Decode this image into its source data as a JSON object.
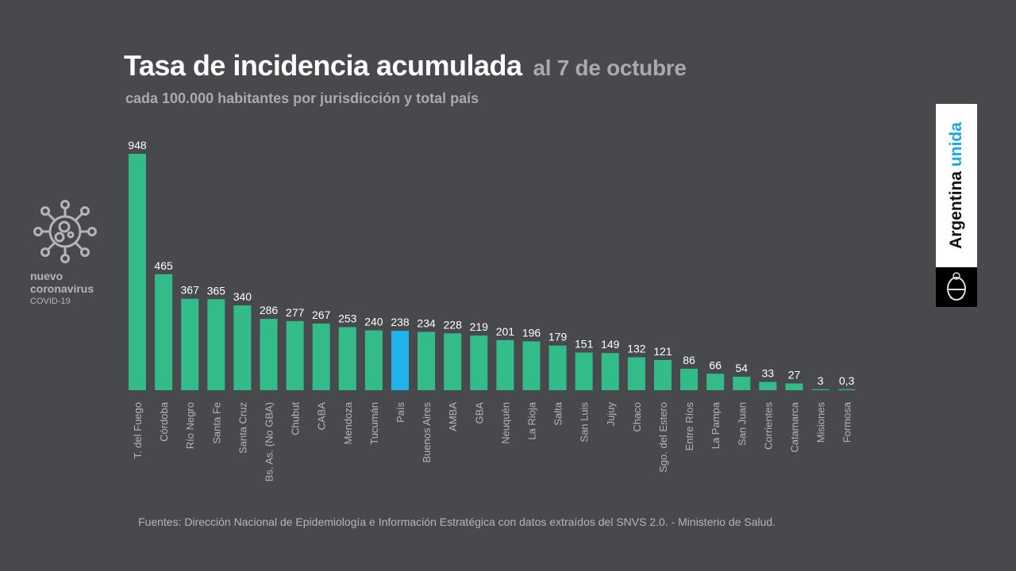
{
  "header": {
    "title": "Tasa de incidencia acumulada",
    "date": "al 7 de octubre",
    "subtitle": "cada 100.000 habitantes por jurisdicción y total país"
  },
  "logo": {
    "icon": "coronavirus-icon",
    "line1": "nuevo",
    "line2": "coronavirus",
    "line3": "COVID-19"
  },
  "brand": {
    "word1": "Argentina",
    "word2": "unida",
    "icon": "coat-of-arms-icon",
    "accent_color": "#1ea6e0"
  },
  "footer": "Fuentes: Dirección Nacional de Epidemiología e Información Estratégica con datos extraídos del SNVS 2.0. - Ministerio de Salud.",
  "colors": {
    "bar": "#34bb8a",
    "highlight": "#23b1ea",
    "background": "#48494d"
  },
  "chart_data": {
    "type": "bar",
    "title": "Tasa de incidencia acumulada al 7 de octubre",
    "subtitle": "cada 100.000 habitantes por jurisdicción y total país",
    "xlabel": "",
    "ylabel": "",
    "ylim": [
      0,
      948
    ],
    "grid": false,
    "highlight_category": "País",
    "categories": [
      "T. del Fuego",
      "Córdoba",
      "Río Negro",
      "Santa Fe",
      "Santa Cruz",
      "Bs. As. (No GBA)",
      "Chubut",
      "CABA",
      "Mendoza",
      "Tucumán",
      "País",
      "Buenos Aires",
      "AMBA",
      "GBA",
      "Neuquén",
      "La Rioja",
      "Salta",
      "San Luis",
      "Jujuy",
      "Chaco",
      "Sgo. del Estero",
      "Entre Ríos",
      "La Pampa",
      "San Juan",
      "Corrientes",
      "Catamarca",
      "Misiones",
      "Formosa"
    ],
    "values": [
      948,
      465,
      367,
      365,
      340,
      286,
      277,
      267,
      253,
      240,
      238,
      234,
      228,
      219,
      201,
      196,
      179,
      151,
      149,
      132,
      121,
      86,
      66,
      54,
      33,
      27,
      3,
      0.3
    ],
    "value_labels": [
      "948",
      "465",
      "367",
      "365",
      "340",
      "286",
      "277",
      "267",
      "253",
      "240",
      "238",
      "234",
      "228",
      "219",
      "201",
      "196",
      "179",
      "151",
      "149",
      "132",
      "121",
      "86",
      "66",
      "54",
      "33",
      "27",
      "3",
      "0,3"
    ]
  }
}
